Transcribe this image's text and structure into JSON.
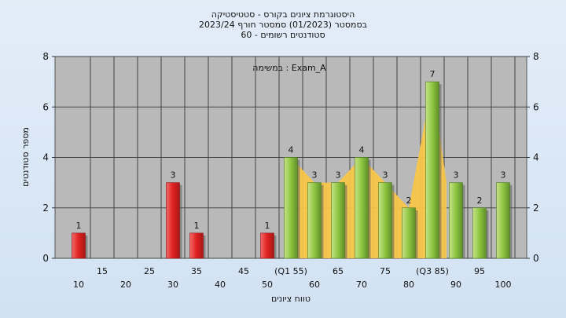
{
  "header": {
    "line1": "היסטוגרמת ציונים בקורס - סטטיסטיקה",
    "line2": "בסמסטר  (01/2023)  סמסטר חורף  2023/24",
    "line3": "סטודנטים רשומים - 60"
  },
  "annotation": "במשימה : Exam_A",
  "colors": {
    "fail_bar": "#e03030",
    "pass_bar": "#8dc63f",
    "iqr_area": "#f7c64a",
    "plot_bg": "#b9b9b9"
  },
  "chart_data": {
    "type": "bar",
    "ylabel": "מספר סטודנטים",
    "xlabel": "טווח ציונים",
    "ylim": [
      0,
      8
    ],
    "yticks": [
      0,
      2,
      4,
      6,
      8
    ],
    "categories": [
      "10",
      "15",
      "20",
      "25",
      "30",
      "35",
      "40",
      "45",
      "50",
      "55",
      "60",
      "65",
      "70",
      "75",
      "80",
      "85",
      "90",
      "95",
      "100"
    ],
    "tick_labels": [
      "10",
      "15",
      "20",
      "25",
      "30",
      "35",
      "40",
      "45",
      "50",
      "(Q1 55)",
      "60",
      "65",
      "70",
      "75",
      "80",
      "(Q3 85)",
      "90",
      "95",
      "100"
    ],
    "values": [
      1,
      0,
      0,
      0,
      3,
      1,
      0,
      0,
      1,
      4,
      3,
      3,
      4,
      3,
      2,
      7,
      3,
      2,
      3
    ],
    "pass_threshold": 55,
    "quartiles": {
      "Q1": 55,
      "Q3": 85
    },
    "grid": true
  }
}
